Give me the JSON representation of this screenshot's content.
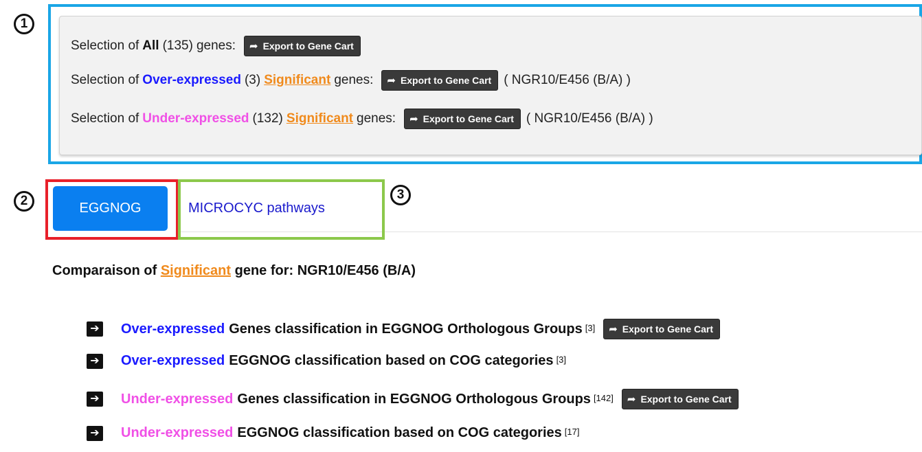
{
  "callouts": {
    "one": "1",
    "two": "2",
    "three": "3"
  },
  "selection": {
    "export_label": "Export to Gene Cart",
    "row1": {
      "prefix": "Selection of",
      "keyword": "All",
      "count": "(135)",
      "suffix": "genes:"
    },
    "row2": {
      "prefix": "Selection of",
      "keyword": "Over-expressed",
      "count": "(3)",
      "sig": "Significant",
      "suffix": "genes:",
      "comparison": "( NGR10/E456 (B/A) )"
    },
    "row3": {
      "prefix": "Selection of",
      "keyword": "Under-expressed",
      "count": "(132)",
      "sig": "Significant",
      "suffix": "genes:",
      "comparison": "( NGR10/E456 (B/A) )"
    }
  },
  "tabs": [
    {
      "label": "EGGNOG",
      "active": true
    },
    {
      "label": "MICROCYC pathways",
      "active": false
    }
  ],
  "comparison": {
    "prefix": "Comparaison of",
    "sig": "Significant",
    "suffix": "gene for: NGR10/E456 (B/A)"
  },
  "list": [
    {
      "keyword": "Over-expressed",
      "text": "Genes classification in EGGNOG Orthologous Groups",
      "count": "[3]",
      "export": "Export to Gene Cart"
    },
    {
      "keyword": "Over-expressed",
      "text": "EGGNOG classification based on COG categories",
      "count": "[3]"
    },
    {
      "keyword": "Under-expressed",
      "text": "Genes classification in EGGNOG Orthologous Groups",
      "count": "[142]",
      "export": "Export to Gene Cart"
    },
    {
      "keyword": "Under-expressed",
      "text": "EGGNOG classification based on COG categories",
      "count": "[17]"
    }
  ],
  "colors": {
    "over": "#1a1aff",
    "under": "#f050e6",
    "significant": "#f08a1c",
    "active_tab": "#0a7ff0",
    "callout1_border": "#1aa6e6",
    "callout2_border": "#e8202a",
    "callout3_border": "#8cc84b"
  },
  "icons": {
    "export": "share-arrow-icon",
    "list_bullet": "arrow-right-square-icon"
  }
}
